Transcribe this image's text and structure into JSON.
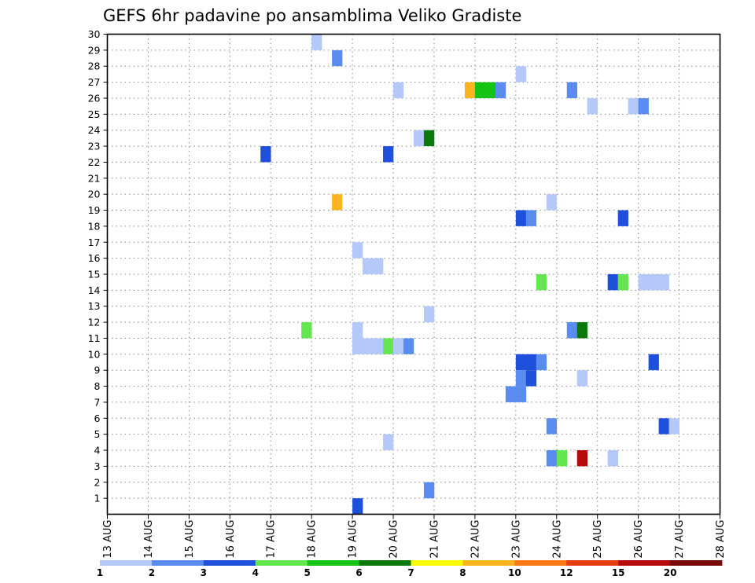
{
  "chart_data": {
    "type": "heatmap",
    "title": "GEFS 6hr padavine po ansamblima Veliko Gradiste",
    "xlabel": "",
    "ylabel": "",
    "x_ticks": [
      "13 AUG",
      "14 AUG",
      "15 AUG",
      "16 AUG",
      "17 AUG",
      "18 AUG",
      "19 AUG",
      "20 AUG",
      "21 AUG",
      "22 AUG",
      "23 AUG",
      "24 AUG",
      "25 AUG",
      "26 AUG",
      "27 AUG",
      "28 AUG"
    ],
    "x_range_days": [
      13,
      28
    ],
    "y_ticks": [
      1,
      2,
      3,
      4,
      5,
      6,
      7,
      8,
      9,
      10,
      11,
      12,
      13,
      14,
      15,
      16,
      17,
      18,
      19,
      20,
      21,
      22,
      23,
      24,
      25,
      26,
      27,
      28,
      29,
      30
    ],
    "y_range": [
      0,
      30
    ],
    "grid": true,
    "colorbar": {
      "labels": [
        "1",
        "2",
        "3",
        "4",
        "5",
        "6",
        "7",
        "8",
        "10",
        "12",
        "15",
        "20"
      ],
      "colors": [
        "#b4c8fa",
        "#5a8cf0",
        "#1e50dc",
        "#64e650",
        "#14c314",
        "#0a780a",
        "#fafa00",
        "#fab41e",
        "#fa7814",
        "#e63c14",
        "#b40a0a",
        "#780a0a"
      ]
    },
    "cells": [
      {
        "date": "18.0",
        "member": 29,
        "color": "#b4c8fa"
      },
      {
        "date": "18.5",
        "member": 28,
        "color": "#5a8cf0"
      },
      {
        "date": "23.0",
        "member": 27,
        "color": "#b4c8fa"
      },
      {
        "date": "20.0",
        "member": 26,
        "color": "#b4c8fa"
      },
      {
        "date": "21.75",
        "member": 26,
        "color": "#fab41e"
      },
      {
        "date": "22.0",
        "member": 26,
        "color": "#14c314"
      },
      {
        "date": "22.25",
        "member": 26,
        "color": "#14c314"
      },
      {
        "date": "22.5",
        "member": 26,
        "color": "#5a8cf0"
      },
      {
        "date": "24.25",
        "member": 26,
        "color": "#5a8cf0"
      },
      {
        "date": "24.75",
        "member": 25,
        "color": "#b4c8fa"
      },
      {
        "date": "25.75",
        "member": 25,
        "color": "#b4c8fa"
      },
      {
        "date": "26.0",
        "member": 25,
        "color": "#5a8cf0"
      },
      {
        "date": "20.5",
        "member": 23,
        "color": "#b4c8fa"
      },
      {
        "date": "20.75",
        "member": 23,
        "color": "#0a780a"
      },
      {
        "date": "16.75",
        "member": 22,
        "color": "#1e50dc"
      },
      {
        "date": "19.75",
        "member": 22,
        "color": "#1e50dc"
      },
      {
        "date": "18.5",
        "member": 19,
        "color": "#fab41e"
      },
      {
        "date": "23.75",
        "member": 19,
        "color": "#b4c8fa"
      },
      {
        "date": "23.0",
        "member": 18,
        "color": "#1e50dc"
      },
      {
        "date": "23.25",
        "member": 18,
        "color": "#5a8cf0"
      },
      {
        "date": "25.5",
        "member": 18,
        "color": "#1e50dc"
      },
      {
        "date": "19.0",
        "member": 16,
        "color": "#b4c8fa"
      },
      {
        "date": "19.25",
        "member": 15,
        "color": "#b4c8fa"
      },
      {
        "date": "19.5",
        "member": 15,
        "color": "#b4c8fa"
      },
      {
        "date": "23.5",
        "member": 14,
        "color": "#64e650"
      },
      {
        "date": "25.25",
        "member": 14,
        "color": "#1e50dc"
      },
      {
        "date": "25.5",
        "member": 14,
        "color": "#64e650"
      },
      {
        "date": "26.0",
        "member": 14,
        "color": "#b4c8fa"
      },
      {
        "date": "26.25",
        "member": 14,
        "color": "#b4c8fa"
      },
      {
        "date": "26.5",
        "member": 14,
        "color": "#b4c8fa"
      },
      {
        "date": "20.75",
        "member": 12,
        "color": "#b4c8fa"
      },
      {
        "date": "17.75",
        "member": 11,
        "color": "#64e650"
      },
      {
        "date": "19.0",
        "member": 11,
        "color": "#b4c8fa"
      },
      {
        "date": "24.25",
        "member": 11,
        "color": "#5a8cf0"
      },
      {
        "date": "24.5",
        "member": 11,
        "color": "#0a780a"
      },
      {
        "date": "19.0",
        "member": 10,
        "color": "#b4c8fa"
      },
      {
        "date": "19.25",
        "member": 10,
        "color": "#b4c8fa"
      },
      {
        "date": "19.5",
        "member": 10,
        "color": "#b4c8fa"
      },
      {
        "date": "19.75",
        "member": 10,
        "color": "#64e650"
      },
      {
        "date": "20.0",
        "member": 10,
        "color": "#b4c8fa"
      },
      {
        "date": "20.25",
        "member": 10,
        "color": "#5a8cf0"
      },
      {
        "date": "23.0",
        "member": 9,
        "color": "#1e50dc"
      },
      {
        "date": "23.25",
        "member": 9,
        "color": "#1e50dc"
      },
      {
        "date": "23.5",
        "member": 9,
        "color": "#5a8cf0"
      },
      {
        "date": "26.25",
        "member": 9,
        "color": "#1e50dc"
      },
      {
        "date": "23.0",
        "member": 8,
        "color": "#5a8cf0"
      },
      {
        "date": "23.25",
        "member": 8,
        "color": "#1e50dc"
      },
      {
        "date": "24.5",
        "member": 8,
        "color": "#b4c8fa"
      },
      {
        "date": "22.75",
        "member": 7,
        "color": "#5a8cf0"
      },
      {
        "date": "23.0",
        "member": 7,
        "color": "#5a8cf0"
      },
      {
        "date": "23.75",
        "member": 5,
        "color": "#5a8cf0"
      },
      {
        "date": "26.5",
        "member": 5,
        "color": "#1e50dc"
      },
      {
        "date": "26.75",
        "member": 5,
        "color": "#b4c8fa"
      },
      {
        "date": "19.75",
        "member": 4,
        "color": "#b4c8fa"
      },
      {
        "date": "23.75",
        "member": 3,
        "color": "#5a8cf0"
      },
      {
        "date": "24.0",
        "member": 3,
        "color": "#64e650"
      },
      {
        "date": "24.5",
        "member": 3,
        "color": "#b40a0a"
      },
      {
        "date": "25.25",
        "member": 3,
        "color": "#b4c8fa"
      },
      {
        "date": "20.75",
        "member": 1,
        "color": "#5a8cf0"
      },
      {
        "date": "19.0",
        "member": 0,
        "color": "#1e50dc"
      }
    ]
  }
}
